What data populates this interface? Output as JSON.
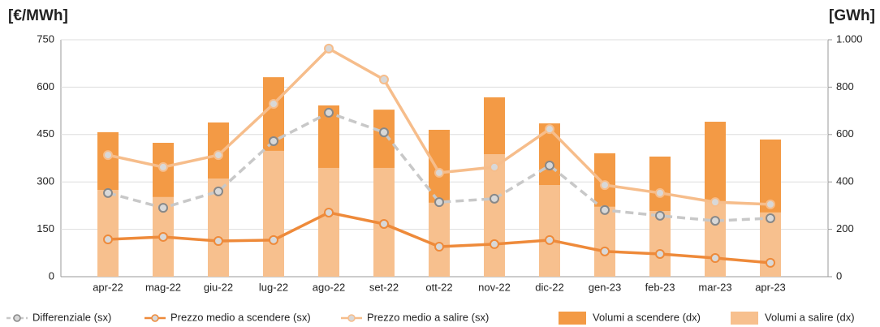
{
  "chart_data": {
    "type": "combo",
    "y_title": "[€/MWh]",
    "y2_title": "[GWh]",
    "categories": [
      "apr-22",
      "mag-22",
      "giu-22",
      "lug-22",
      "ago-22",
      "set-22",
      "ott-22",
      "nov-22",
      "dic-22",
      "gen-23",
      "feb-23",
      "mar-23",
      "apr-23"
    ],
    "ylim": [
      0,
      750
    ],
    "yticks": [
      0,
      150,
      300,
      450,
      600,
      750
    ],
    "y2lim": [
      0,
      1000
    ],
    "y2ticks": [
      0,
      200,
      400,
      600,
      800,
      {
        "value": 1000,
        "label": "1.000"
      }
    ],
    "grid": true,
    "series": [
      {
        "name": "Differenziale (sx)",
        "type": "line",
        "dash": true,
        "color": "#c8c8c8",
        "axis": "y",
        "values": [
          265,
          218,
          270,
          429,
          519,
          457,
          236,
          247,
          352,
          211,
          193,
          177,
          185
        ]
      },
      {
        "name": "Prezzo medio a scendere (sx)",
        "type": "line",
        "dash": false,
        "color": "#ee8a3a",
        "axis": "y",
        "values": [
          118,
          126,
          113,
          116,
          203,
          167,
          95,
          103,
          116,
          80,
          72,
          59,
          44
        ]
      },
      {
        "name": "Prezzo medio a salire (sx)",
        "type": "line",
        "dash": false,
        "color": "#f6bd8b",
        "axis": "y",
        "values": [
          385,
          347,
          385,
          547,
          722,
          624,
          329,
          347,
          467,
          290,
          265,
          236,
          229
        ]
      },
      {
        "name": "Volumi a scendere (dx)",
        "type": "bar",
        "color": "#f39a45",
        "axis": "y2",
        "values": [
          244,
          229,
          237,
          311,
          264,
          246,
          308,
          240,
          260,
          226,
          230,
          336,
          308
        ]
      },
      {
        "name": "Volumi a salire (dx)",
        "type": "bar",
        "color": "#f7c08e",
        "axis": "y2",
        "values": [
          366,
          336,
          414,
          531,
          459,
          459,
          312,
          517,
          387,
          295,
          277,
          318,
          271
        ]
      }
    ]
  }
}
